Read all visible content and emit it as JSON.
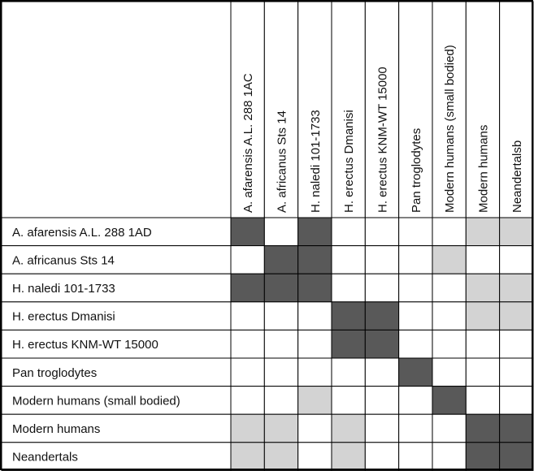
{
  "chart_data": {
    "type": "heatmap",
    "columns": [
      "A. afarensis A.L. 288 1AC",
      "A. africanus Sts 14",
      "H. naledi 101-1733",
      "H. erectus Dmanisi",
      "H. erectus KNM-WT 15000",
      "Pan troglodytes",
      "Modern humans (small bodied)",
      "Modern humans",
      "Neandertalsb"
    ],
    "rows": [
      "A. afarensis A.L. 288 1AD",
      "A. africanus Sts 14",
      "H. naledi 101-1733",
      "H. erectus Dmanisi",
      "H. erectus KNM-WT 15000",
      "Pan troglodytes",
      "Modern humans (small bodied)",
      "Modern humans",
      "Neandertals"
    ],
    "values": [
      [
        2,
        0,
        2,
        0,
        0,
        0,
        0,
        1,
        1
      ],
      [
        0,
        2,
        2,
        0,
        0,
        0,
        1,
        0,
        0
      ],
      [
        2,
        2,
        2,
        0,
        0,
        0,
        0,
        1,
        1
      ],
      [
        0,
        0,
        0,
        2,
        2,
        0,
        0,
        1,
        1
      ],
      [
        0,
        0,
        0,
        2,
        2,
        0,
        0,
        0,
        0
      ],
      [
        0,
        0,
        0,
        0,
        0,
        2,
        0,
        0,
        0
      ],
      [
        0,
        0,
        1,
        0,
        0,
        0,
        2,
        0,
        0
      ],
      [
        1,
        1,
        0,
        1,
        0,
        0,
        0,
        2,
        2
      ],
      [
        1,
        1,
        0,
        1,
        0,
        0,
        0,
        2,
        2
      ]
    ],
    "level_colors": [
      "#ffffff",
      "#d3d3d3",
      "#595959"
    ]
  }
}
